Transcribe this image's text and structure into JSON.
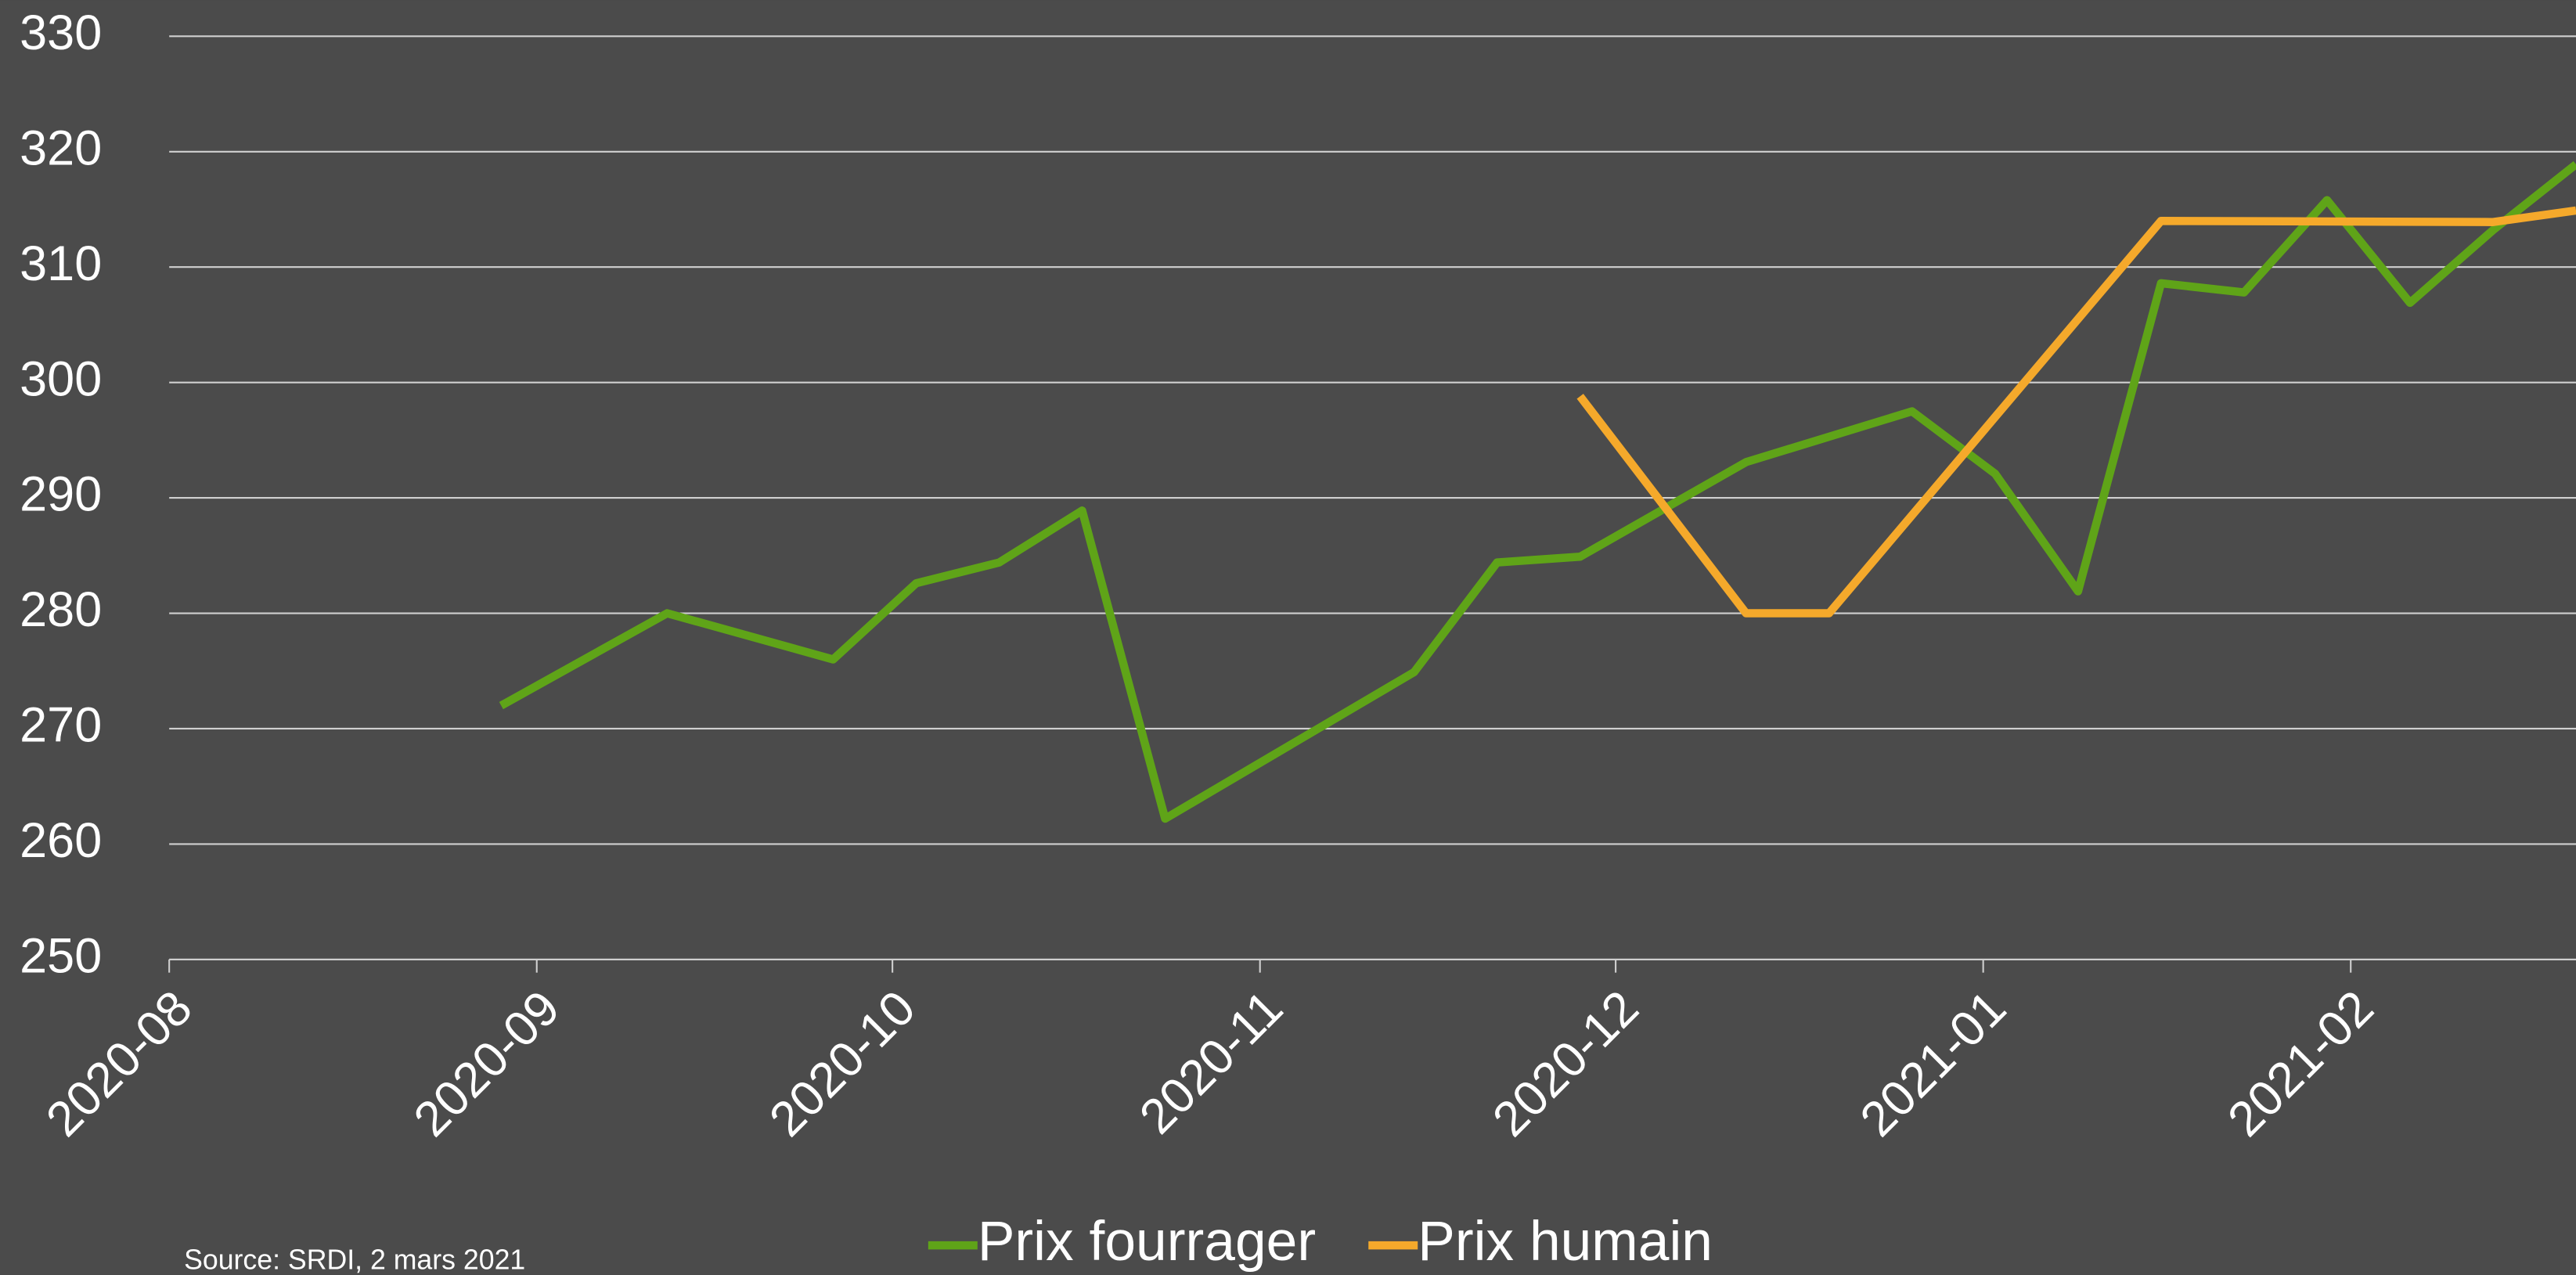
{
  "chart_data": {
    "type": "line",
    "source": "Source: SRDI, 2 mars 2021",
    "xlim": [
      "2020-08-01",
      "2021-02-20"
    ],
    "xticks": [
      {
        "value": "2020-08-01",
        "label": "2020-08"
      },
      {
        "value": "2020-09-01",
        "label": "2020-09"
      },
      {
        "value": "2020-10-01",
        "label": "2020-10"
      },
      {
        "value": "2020-11-01",
        "label": "2020-11"
      },
      {
        "value": "2020-12-01",
        "label": "2020-12"
      },
      {
        "value": "2021-01-01",
        "label": "2021-01"
      },
      {
        "value": "2021-02-01",
        "label": "2021-02"
      }
    ],
    "ylim": [
      250,
      330
    ],
    "yticks": [
      250,
      260,
      270,
      280,
      290,
      300,
      310,
      320,
      330
    ],
    "grid": true,
    "series": [
      {
        "name": "Prix fourrager",
        "color": "#5fa418",
        "x": [
          "2020-08-29",
          "2020-09-12",
          "2020-09-26",
          "2020-10-03",
          "2020-10-10",
          "2020-10-17",
          "2020-10-24",
          "2020-11-14",
          "2020-11-21",
          "2020-11-28",
          "2020-12-12",
          "2020-12-26",
          "2021-01-02",
          "2021-01-09",
          "2021-01-16",
          "2021-01-23",
          "2021-01-30",
          "2021-02-06",
          "2021-02-13",
          "2021-02-20"
        ],
        "values": [
          272,
          280,
          276,
          282.6,
          284.4,
          288.9,
          262.2,
          274.9,
          284.4,
          284.9,
          293.1,
          297.5,
          292.1,
          281.9,
          308.6,
          307.8,
          315.8,
          306.9,
          313.2,
          318.9
        ]
      },
      {
        "name": "Prix humain",
        "color": "#f5a92b",
        "x": [
          "2020-11-28",
          "2020-12-12",
          "2020-12-19",
          "2021-01-16",
          "2021-02-13",
          "2021-02-20"
        ],
        "values": [
          298.8,
          280,
          280,
          314,
          313.9,
          314.9
        ]
      }
    ]
  }
}
